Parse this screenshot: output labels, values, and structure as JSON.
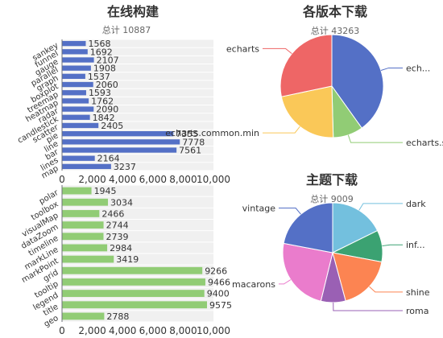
{
  "chart_data": [
    {
      "type": "bar",
      "orientation": "horizontal",
      "title": "在线构建",
      "subtitle": "总计 10887",
      "color": "#5470c6",
      "categories": [
        "sankey",
        "funnel",
        "gauge",
        "parallel",
        "graph",
        "boxplot",
        "treemap",
        "heatmap",
        "radar",
        "candlestick",
        "scatter",
        "pie",
        "line",
        "bar",
        "lines",
        "map"
      ],
      "values": [
        1568,
        1692,
        2107,
        1908,
        1537,
        2060,
        1593,
        1762,
        2090,
        1842,
        2405,
        7355,
        7778,
        7561,
        2164,
        3237
      ],
      "xlim": [
        0,
        10000
      ],
      "xticks": [
        "0",
        "2,000",
        "4,000",
        "6,000",
        "8,000",
        "10,000"
      ],
      "grid": false
    },
    {
      "type": "bar",
      "orientation": "horizontal",
      "color": "#91cc75",
      "categories": [
        "polar",
        "toolbox",
        "visualMap",
        "dataZoom",
        "timeline",
        "markLine",
        "markPoint",
        "grid",
        "tooltip",
        "legend",
        "title",
        "geo"
      ],
      "values": [
        1945,
        3034,
        2466,
        2744,
        2739,
        2984,
        3419,
        9266,
        9466,
        9400,
        9575,
        2788
      ],
      "xlim": [
        0,
        10000
      ],
      "xticks": [
        "0",
        "2,000",
        "4,000",
        "6,000",
        "8,000",
        "10,000"
      ],
      "grid": false
    },
    {
      "type": "pie",
      "title": "各版本下载",
      "subtitle": "总计 43263",
      "slices": [
        {
          "name": "echarts.min",
          "label": "ech...",
          "value": 17365,
          "color": "#5470c6"
        },
        {
          "name": "echarts.simple.min",
          "label": "echarts.sim...",
          "value": 4079,
          "color": "#91cc75"
        },
        {
          "name": "echarts.common.min",
          "label": "echarts.common.min",
          "value": 9575,
          "color": "#fac858"
        },
        {
          "name": "echarts",
          "label": "echarts",
          "value": 12244,
          "color": "#ee6666"
        }
      ]
    },
    {
      "type": "pie",
      "title": "主题下载",
      "subtitle": "总计 9009",
      "slices": [
        {
          "name": "dark",
          "label": "dark",
          "value": 1594,
          "color": "#73c0de"
        },
        {
          "name": "infographic",
          "label": "inf...",
          "value": 925,
          "color": "#3ba272"
        },
        {
          "name": "shine",
          "label": "shine",
          "value": 1608,
          "color": "#fc8452"
        },
        {
          "name": "roma",
          "label": "roma",
          "value": 721,
          "color": "#9a60b4"
        },
        {
          "name": "macarons",
          "label": "macarons",
          "value": 2179,
          "color": "#ea7ccc"
        },
        {
          "name": "vintage",
          "label": "vintage",
          "value": 1982,
          "color": "#5470c6"
        }
      ]
    }
  ],
  "style": {
    "band_color": "#f0f0f0",
    "axis_color": "#6e7079",
    "leader_color": "#999999"
  }
}
